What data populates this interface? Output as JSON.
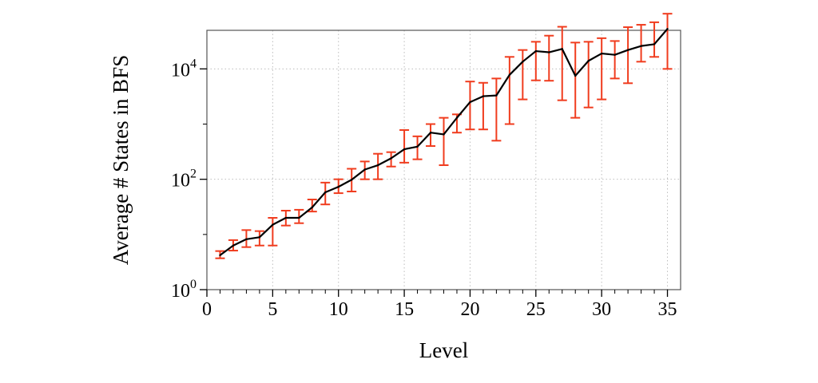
{
  "chart_data": {
    "type": "line",
    "title": "",
    "xlabel": "Level",
    "ylabel": "Average # States in BFS",
    "x_scale": "linear",
    "y_scale": "log",
    "xlim": [
      0,
      36
    ],
    "ylim": [
      1,
      50000
    ],
    "x_ticks": [
      0,
      5,
      10,
      15,
      20,
      25,
      30,
      35
    ],
    "y_ticks": [
      {
        "value": 1,
        "base": "10",
        "exp": "0"
      },
      {
        "value": 100,
        "base": "10",
        "exp": "2"
      },
      {
        "value": 10000,
        "base": "10",
        "exp": "4"
      }
    ],
    "grid": true,
    "colors": {
      "line": "#000000",
      "error_bars": "#f03c1e",
      "grid": "#bdbdbd",
      "frame": "#555555"
    },
    "series": [
      {
        "x": [
          1,
          2,
          3,
          4,
          5,
          6,
          7,
          8,
          9,
          10,
          11,
          12,
          13,
          14,
          15,
          16,
          17,
          18,
          19,
          20,
          21,
          22,
          23,
          24,
          25,
          26,
          27,
          28,
          29,
          30,
          31,
          32,
          33,
          34,
          35
        ],
        "y": [
          4.2,
          6.3,
          8.2,
          8.9,
          15,
          20,
          20,
          31,
          58,
          73,
          98,
          150,
          180,
          240,
          350,
          390,
          700,
          650,
          1300,
          2500,
          3200,
          3300,
          7800,
          13500,
          21000,
          20000,
          23000,
          7500,
          14000,
          19000,
          18000,
          22000,
          26000,
          28000,
          53000
        ],
        "error_low": [
          3.7,
          5.1,
          5.9,
          6.3,
          6.3,
          14.5,
          16,
          26,
          35,
          56,
          60,
          100,
          100,
          170,
          200,
          230,
          400,
          180,
          700,
          800,
          800,
          500,
          1000,
          2800,
          6200,
          6100,
          2700,
          1300,
          2000,
          2800,
          6700,
          5500,
          13500,
          16500,
          10000
        ],
        "error_high": [
          5,
          7.9,
          12,
          11.5,
          20,
          27,
          28,
          43,
          87,
          100,
          155,
          210,
          290,
          310,
          780,
          600,
          1000,
          1300,
          1500,
          5900,
          5600,
          6700,
          16500,
          22000,
          31000,
          40000,
          58000,
          30000,
          31000,
          36000,
          32000,
          57000,
          63000,
          70000,
          100000
        ]
      }
    ]
  }
}
